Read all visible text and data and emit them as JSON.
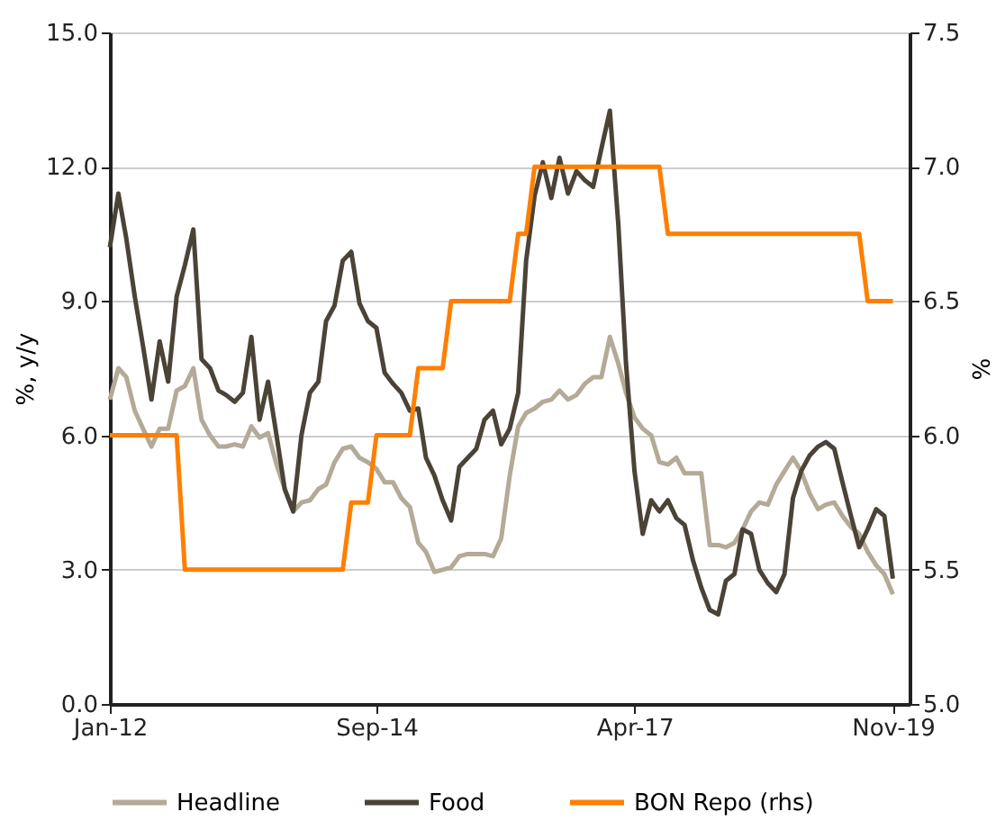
{
  "chart_data": {
    "type": "line",
    "xlabel": null,
    "ylabel": "%, y/y",
    "y2label": "%",
    "x": [
      "2012-01",
      "2012-02",
      "2012-03",
      "2012-04",
      "2012-05",
      "2012-06",
      "2012-07",
      "2012-08",
      "2012-09",
      "2012-10",
      "2012-11",
      "2012-12",
      "2013-01",
      "2013-02",
      "2013-03",
      "2013-04",
      "2013-05",
      "2013-06",
      "2013-07",
      "2013-08",
      "2013-09",
      "2013-10",
      "2013-11",
      "2013-12",
      "2014-01",
      "2014-02",
      "2014-03",
      "2014-04",
      "2014-05",
      "2014-06",
      "2014-07",
      "2014-08",
      "2014-09",
      "2014-10",
      "2014-11",
      "2014-12",
      "2015-01",
      "2015-02",
      "2015-03",
      "2015-04",
      "2015-05",
      "2015-06",
      "2015-07",
      "2015-08",
      "2015-09",
      "2015-10",
      "2015-11",
      "2015-12",
      "2016-01",
      "2016-02",
      "2016-03",
      "2016-04",
      "2016-05",
      "2016-06",
      "2016-07",
      "2016-08",
      "2016-09",
      "2016-10",
      "2016-11",
      "2016-12",
      "2017-01",
      "2017-02",
      "2017-03",
      "2017-04",
      "2017-05",
      "2017-06",
      "2017-07",
      "2017-08",
      "2017-09",
      "2017-10",
      "2017-11",
      "2017-12",
      "2018-01",
      "2018-02",
      "2018-03",
      "2018-04",
      "2018-05",
      "2018-06",
      "2018-07",
      "2018-08",
      "2018-09",
      "2018-10",
      "2018-11",
      "2018-12",
      "2019-01",
      "2019-02",
      "2019-03",
      "2019-04",
      "2019-05",
      "2019-06",
      "2019-07",
      "2019-08",
      "2019-09",
      "2019-10",
      "2019-11"
    ],
    "series": [
      {
        "name": "Headline",
        "color": "#b3aa97",
        "values": [
          6.8,
          7.5,
          7.3,
          6.55,
          6.15,
          5.75,
          6.15,
          6.15,
          7.0,
          7.1,
          7.5,
          6.35,
          6.0,
          5.75,
          5.75,
          5.8,
          5.75,
          6.2,
          5.95,
          6.05,
          5.35,
          4.8,
          4.3,
          4.5,
          4.55,
          4.8,
          4.9,
          5.4,
          5.7,
          5.75,
          5.5,
          5.4,
          5.25,
          4.95,
          4.95,
          4.6,
          4.4,
          3.6,
          3.4,
          2.95,
          3.0,
          3.05,
          3.3,
          3.35,
          3.35,
          3.35,
          3.3,
          3.7,
          5.1,
          6.2,
          6.5,
          6.6,
          6.75,
          6.8,
          7.0,
          6.8,
          6.9,
          7.15,
          7.3,
          7.3,
          8.2,
          7.6,
          6.95,
          6.4,
          6.15,
          6.0,
          5.4,
          5.35,
          5.5,
          5.15,
          5.15,
          5.15,
          3.55,
          3.55,
          3.5,
          3.6,
          3.9,
          4.3,
          4.5,
          4.45,
          4.9,
          5.2,
          5.5,
          5.2,
          4.7,
          4.35,
          4.45,
          4.5,
          4.2,
          3.95,
          3.8,
          3.4,
          3.1,
          2.9,
          2.45
        ]
      },
      {
        "name": "Food",
        "color": "#4a4336",
        "values": [
          10.2,
          11.4,
          10.4,
          9.1,
          8.0,
          6.8,
          8.1,
          7.2,
          9.1,
          9.8,
          10.6,
          7.7,
          7.5,
          7.0,
          6.9,
          6.75,
          6.95,
          8.2,
          6.35,
          7.2,
          6.0,
          4.8,
          4.3,
          6.0,
          6.95,
          7.2,
          8.55,
          8.9,
          9.9,
          10.1,
          8.95,
          8.55,
          8.4,
          7.4,
          7.15,
          6.95,
          6.55,
          6.6,
          5.5,
          5.1,
          4.55,
          4.1,
          5.3,
          5.5,
          5.7,
          6.35,
          6.55,
          5.8,
          6.15,
          6.95,
          9.9,
          11.35,
          12.1,
          11.3,
          12.2,
          11.4,
          11.9,
          11.7,
          11.55,
          12.4,
          13.25,
          10.7,
          7.6,
          5.2,
          3.8,
          4.55,
          4.3,
          4.55,
          4.15,
          4.0,
          3.2,
          2.6,
          2.1,
          2.0,
          2.75,
          2.9,
          3.9,
          3.8,
          3.0,
          2.7,
          2.5,
          2.9,
          4.6,
          5.2,
          5.55,
          5.75,
          5.85,
          5.7,
          4.95,
          4.2,
          3.5,
          3.9,
          4.35,
          4.2,
          2.8
        ]
      },
      {
        "name": "BON Repo (rhs)",
        "color": "#ff7f00",
        "axis": "y2",
        "x": [
          "2012-01",
          "2012-09",
          "2012-10",
          "2014-05",
          "2014-06",
          "2014-08",
          "2014-09",
          "2015-01",
          "2015-02",
          "2015-05",
          "2015-06",
          "2016-01",
          "2016-02",
          "2016-03",
          "2016-04",
          "2017-07",
          "2017-08",
          "2019-07",
          "2019-08",
          "2019-11"
        ],
        "values": [
          6.0,
          6.0,
          5.5,
          5.5,
          5.75,
          5.75,
          6.0,
          6.0,
          6.25,
          6.25,
          6.5,
          6.5,
          6.75,
          6.75,
          7.0,
          7.0,
          6.75,
          6.75,
          6.5,
          6.5
        ]
      }
    ],
    "xlim": [
      "2012-01",
      "2020-01"
    ],
    "xticks": [
      {
        "value": "2012-01",
        "label": "Jan-12"
      },
      {
        "value": "2014-09",
        "label": "Sep-14"
      },
      {
        "value": "2017-04",
        "label": "Apr-17"
      },
      {
        "value": "2019-11",
        "label": "Nov-19"
      }
    ],
    "ylim": [
      0,
      15
    ],
    "yticks": [
      {
        "value": 0,
        "label": "0.0"
      },
      {
        "value": 3,
        "label": "3.0"
      },
      {
        "value": 6,
        "label": "6.0"
      },
      {
        "value": 9,
        "label": "9.0"
      },
      {
        "value": 12,
        "label": "12.0"
      },
      {
        "value": 15,
        "label": "15.0"
      }
    ],
    "y2lim": [
      5,
      7.5
    ],
    "y2ticks": [
      {
        "value": 5,
        "label": "5.0"
      },
      {
        "value": 5.5,
        "label": "5.5"
      },
      {
        "value": 6,
        "label": "6.0"
      },
      {
        "value": 6.5,
        "label": "6.5"
      },
      {
        "value": 7,
        "label": "7.0"
      },
      {
        "value": 7.5,
        "label": "7.5"
      }
    ],
    "grid": "y",
    "legend": "bottom"
  }
}
